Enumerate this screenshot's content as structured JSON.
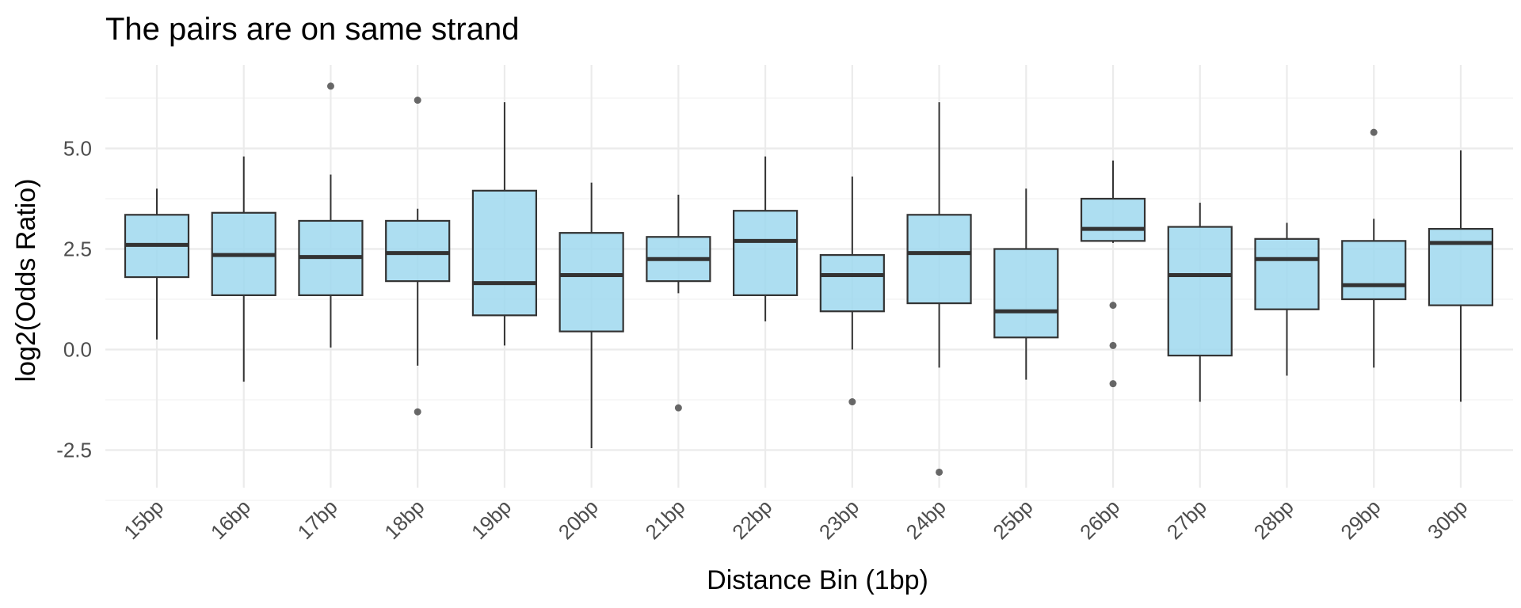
{
  "chart_data": {
    "type": "boxplot",
    "title": "The pairs are on same strand",
    "xlabel": "Distance Bin (1bp)",
    "ylabel": "log2(Odds Ratio)",
    "categories": [
      "15bp",
      "16bp",
      "17bp",
      "18bp",
      "19bp",
      "20bp",
      "21bp",
      "22bp",
      "23bp",
      "24bp",
      "25bp",
      "26bp",
      "27bp",
      "28bp",
      "29bp",
      "30bp"
    ],
    "y_ticks": [
      -2.5,
      0.0,
      2.5,
      5.0
    ],
    "y_tick_labels": [
      "-2.5",
      "0.0",
      "2.5",
      "5.0"
    ],
    "ylim": [
      -3.5,
      7.2
    ],
    "grid": true,
    "fill_color": "#9fd8ef",
    "line_color": "#333333",
    "boxes": [
      {
        "category": "15bp",
        "whisker_low": 0.25,
        "q1": 1.8,
        "median": 2.6,
        "q3": 3.35,
        "whisker_high": 4.0,
        "outliers": []
      },
      {
        "category": "16bp",
        "whisker_low": -0.8,
        "q1": 1.35,
        "median": 2.35,
        "q3": 3.4,
        "whisker_high": 4.8,
        "outliers": []
      },
      {
        "category": "17bp",
        "whisker_low": 0.05,
        "q1": 1.35,
        "median": 2.3,
        "q3": 3.2,
        "whisker_high": 4.35,
        "outliers": [
          6.55
        ]
      },
      {
        "category": "18bp",
        "whisker_low": -0.4,
        "q1": 1.7,
        "median": 2.4,
        "q3": 3.2,
        "whisker_high": 3.5,
        "outliers": [
          6.2,
          -1.55
        ]
      },
      {
        "category": "19bp",
        "whisker_low": 0.1,
        "q1": 0.85,
        "median": 1.65,
        "q3": 3.95,
        "whisker_high": 6.15,
        "outliers": []
      },
      {
        "category": "20bp",
        "whisker_low": -2.45,
        "q1": 0.45,
        "median": 1.85,
        "q3": 2.9,
        "whisker_high": 4.15,
        "outliers": []
      },
      {
        "category": "21bp",
        "whisker_low": 1.4,
        "q1": 1.7,
        "median": 2.25,
        "q3": 2.8,
        "whisker_high": 3.85,
        "outliers": [
          -1.45
        ]
      },
      {
        "category": "22bp",
        "whisker_low": 0.7,
        "q1": 1.35,
        "median": 2.7,
        "q3": 3.45,
        "whisker_high": 4.8,
        "outliers": []
      },
      {
        "category": "23bp",
        "whisker_low": 0.0,
        "q1": 0.95,
        "median": 1.85,
        "q3": 2.35,
        "whisker_high": 4.3,
        "outliers": [
          -1.3
        ]
      },
      {
        "category": "24bp",
        "whisker_low": -0.45,
        "q1": 1.15,
        "median": 2.4,
        "q3": 3.35,
        "whisker_high": 6.15,
        "outliers": [
          -3.05
        ]
      },
      {
        "category": "25bp",
        "whisker_low": -0.75,
        "q1": 0.3,
        "median": 0.95,
        "q3": 2.5,
        "whisker_high": 4.0,
        "outliers": []
      },
      {
        "category": "26bp",
        "whisker_low": 2.65,
        "q1": 2.7,
        "median": 3.0,
        "q3": 3.75,
        "whisker_high": 4.7,
        "outliers": [
          1.1,
          0.1,
          -0.85
        ]
      },
      {
        "category": "27bp",
        "whisker_low": -1.3,
        "q1": -0.15,
        "median": 1.85,
        "q3": 3.05,
        "whisker_high": 3.65,
        "outliers": []
      },
      {
        "category": "28bp",
        "whisker_low": -0.65,
        "q1": 1.0,
        "median": 2.25,
        "q3": 2.75,
        "whisker_high": 3.15,
        "outliers": []
      },
      {
        "category": "29bp",
        "whisker_low": -0.45,
        "q1": 1.25,
        "median": 1.6,
        "q3": 2.7,
        "whisker_high": 3.25,
        "outliers": [
          5.4
        ]
      },
      {
        "category": "30bp",
        "whisker_low": -1.3,
        "q1": 1.1,
        "median": 2.65,
        "q3": 3.0,
        "whisker_high": 4.95,
        "outliers": []
      }
    ]
  }
}
